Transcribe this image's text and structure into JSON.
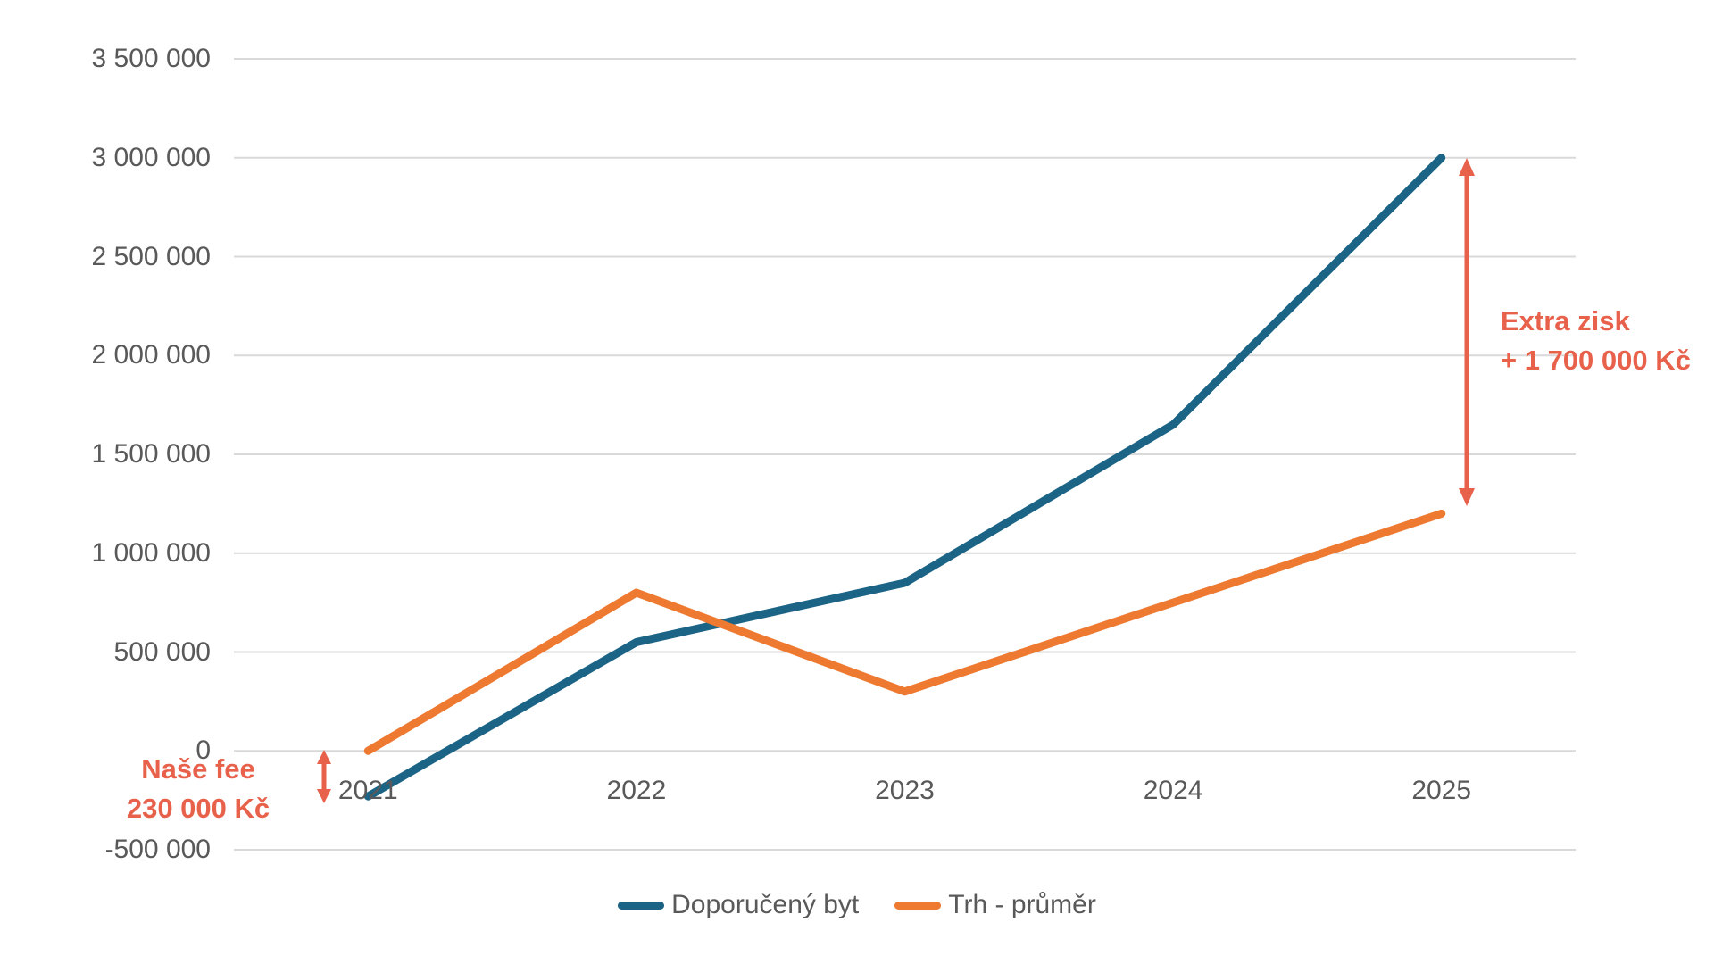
{
  "chart_data": {
    "type": "line",
    "title": "",
    "xlabel": "",
    "ylabel": "",
    "categories": [
      "2021",
      "2022",
      "2023",
      "2024",
      "2025"
    ],
    "series": [
      {
        "name": "Doporučený byt",
        "color": "#1C6485",
        "values": [
          -230000,
          550000,
          850000,
          1650000,
          3000000
        ]
      },
      {
        "name": "Trh - průměr",
        "color": "#EE7A31",
        "values": [
          0,
          800000,
          300000,
          750000,
          1200000
        ]
      }
    ],
    "ylim": [
      -500000,
      3500000
    ],
    "ytick_step": 500000,
    "yticks": [
      {
        "value": 3500000,
        "label": "3 500 000"
      },
      {
        "value": 3000000,
        "label": "3 000 000"
      },
      {
        "value": 2500000,
        "label": "2 500 000"
      },
      {
        "value": 2000000,
        "label": "2 000 000"
      },
      {
        "value": 1500000,
        "label": "1 500 000"
      },
      {
        "value": 1000000,
        "label": "1 000 000"
      },
      {
        "value": 500000,
        "label": "500 000"
      },
      {
        "value": 0,
        "label": "0"
      },
      {
        "value": -500000,
        "label": "-500 000"
      }
    ],
    "grid": "horizontal",
    "legend_position": "bottom",
    "annotations": [
      {
        "id": "nase-fee",
        "line1": "Naše fee",
        "line2": "230 000 Kč",
        "arrow": "double-vertical",
        "arrow_span": [
          0,
          -230000
        ],
        "near_category": "2021"
      },
      {
        "id": "extra-zisk",
        "line1": "Extra zisk",
        "line2": "+ 1 700 000 Kč",
        "arrow": "double-vertical",
        "arrow_span": [
          3000000,
          1250000
        ],
        "near_category": "2025"
      }
    ]
  },
  "colors": {
    "background": "#FFFFFF",
    "gridline": "#D9D9D9",
    "axis_text": "#595959",
    "annotation": "#E8614B",
    "series_blue": "#1C6485",
    "series_orange": "#EE7A31"
  }
}
